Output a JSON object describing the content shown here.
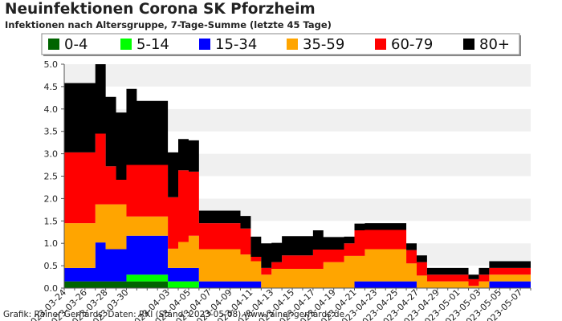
{
  "title": "Neuinfektionen Corona SK Pforzheim",
  "subtitle": "Infektionen nach Altersgruppe, 7-Tage-Summe (letzte 45 Tage)",
  "footer": "Grafik: Rainer Gerhards, Daten: RKI (Stand: 2023-05-08) www.rainer-gerhards.de",
  "chart_data": {
    "type": "area",
    "stacked": true,
    "title": "Neuinfektionen Corona SK Pforzheim",
    "subtitle": "Infektionen nach Altersgruppe, 7-Tage-Summe (letzte 45 Tage)",
    "xlabel": "",
    "ylabel": "",
    "ylim": [
      0,
      5.0
    ],
    "yticks": [
      "0.0",
      "0.5",
      "1.0",
      "1.5",
      "2.0",
      "2.5",
      "3.0",
      "3.5",
      "4.0",
      "4.5",
      "5.0"
    ],
    "grid": "alternating horizontal bands",
    "legend_position": "top",
    "x": [
      "2023-03-24",
      "2023-03-25",
      "2023-03-26",
      "2023-03-27",
      "2023-03-28",
      "2023-03-29",
      "2023-03-30",
      "2023-03-31",
      "2023-04-01",
      "2023-04-02",
      "2023-04-03",
      "2023-04-04",
      "2023-04-05",
      "2023-04-06",
      "2023-04-07",
      "2023-04-08",
      "2023-04-09",
      "2023-04-10",
      "2023-04-11",
      "2023-04-12",
      "2023-04-13",
      "2023-04-14",
      "2023-04-15",
      "2023-04-16",
      "2023-04-17",
      "2023-04-18",
      "2023-04-19",
      "2023-04-20",
      "2023-04-21",
      "2023-04-22",
      "2023-04-23",
      "2023-04-24",
      "2023-04-25",
      "2023-04-26",
      "2023-04-27",
      "2023-04-28",
      "2023-04-29",
      "2023-04-30",
      "2023-05-01",
      "2023-05-02",
      "2023-05-03",
      "2023-05-04",
      "2023-05-05",
      "2023-05-06",
      "2023-05-07",
      "2023-05-08"
    ],
    "xtick_labels": [
      "2023-03-24",
      "2023-03-26",
      "2023-03-28",
      "2023-03-30",
      "2023-04-03",
      "2023-04-05",
      "2023-04-07",
      "2023-04-09",
      "2023-04-11",
      "2023-04-13",
      "2023-04-15",
      "2023-04-17",
      "2023-04-19",
      "2023-04-21",
      "2023-04-23",
      "2023-04-25",
      "2023-04-27",
      "2023-04-29",
      "2023-05-01",
      "2023-05-03",
      "2023-05-05",
      "2023-05-07"
    ],
    "series": [
      {
        "name": "0-4",
        "color": "#006400",
        "values": [
          0.15,
          0.15,
          0.15,
          0.15,
          0.15,
          0.15,
          0.15,
          0.15,
          0.15,
          0.15,
          0,
          0,
          0,
          0,
          0,
          0,
          0,
          0,
          0,
          0,
          0,
          0,
          0,
          0,
          0,
          0,
          0,
          0,
          0,
          0,
          0,
          0,
          0,
          0,
          0,
          0,
          0,
          0,
          0,
          0,
          0,
          0,
          0,
          0,
          0,
          0
        ]
      },
      {
        "name": "5-14",
        "color": "#00ff00",
        "values": [
          0,
          0,
          0,
          0,
          0,
          0,
          0.15,
          0.15,
          0.15,
          0.15,
          0.15,
          0.15,
          0.15,
          0,
          0,
          0,
          0,
          0,
          0,
          0,
          0,
          0,
          0,
          0,
          0,
          0,
          0,
          0,
          0,
          0,
          0,
          0,
          0,
          0,
          0,
          0,
          0,
          0,
          0,
          0,
          0,
          0,
          0,
          0,
          0,
          0
        ]
      },
      {
        "name": "15-34",
        "color": "#0000ff",
        "values": [
          0.3,
          0.3,
          0.3,
          0.87,
          0.72,
          0.72,
          0.87,
          0.87,
          0.87,
          0.87,
          0.3,
          0.3,
          0.3,
          0.15,
          0.15,
          0.15,
          0.15,
          0.15,
          0.15,
          0,
          0,
          0,
          0,
          0,
          0,
          0,
          0,
          0,
          0.15,
          0.15,
          0.15,
          0.15,
          0.15,
          0.15,
          0,
          0,
          0,
          0,
          0,
          0,
          0,
          0.15,
          0.15,
          0.15,
          0.15,
          0.15
        ]
      },
      {
        "name": "35-59",
        "color": "#ffa500",
        "values": [
          1.0,
          1.0,
          1.0,
          0.85,
          1.0,
          1.0,
          0.43,
          0.43,
          0.43,
          0.43,
          0.43,
          0.58,
          0.72,
          0.72,
          0.72,
          0.72,
          0.72,
          0.6,
          0.45,
          0.3,
          0.43,
          0.43,
          0.43,
          0.43,
          0.43,
          0.58,
          0.58,
          0.72,
          0.57,
          0.72,
          0.72,
          0.72,
          0.72,
          0.4,
          0.28,
          0.15,
          0.15,
          0.15,
          0.15,
          0.05,
          0.15,
          0.15,
          0.15,
          0.15,
          0.15,
          0.15
        ]
      },
      {
        "name": "60-79",
        "color": "#ff0000",
        "values": [
          1.58,
          1.58,
          1.58,
          1.58,
          0.85,
          0.55,
          1.15,
          1.15,
          1.15,
          1.15,
          1.15,
          1.6,
          1.43,
          0.58,
          0.58,
          0.58,
          0.58,
          0.58,
          0.1,
          0.15,
          0.15,
          0.3,
          0.3,
          0.3,
          0.43,
          0.28,
          0.28,
          0.28,
          0.57,
          0.43,
          0.43,
          0.43,
          0.43,
          0.3,
          0.3,
          0.15,
          0.15,
          0.15,
          0.15,
          0.15,
          0.15,
          0.15,
          0.15,
          0.15,
          0.15,
          0.3
        ]
      },
      {
        "name": "80+",
        "color": "#000000",
        "values": [
          1.55,
          1.55,
          1.55,
          1.55,
          1.55,
          1.5,
          1.7,
          1.43,
          1.43,
          1.43,
          1.0,
          0.7,
          0.7,
          0.28,
          0.28,
          0.28,
          0.28,
          0.28,
          0.45,
          0.55,
          0.43,
          0.43,
          0.43,
          0.43,
          0.43,
          0.28,
          0.28,
          0.15,
          0.15,
          0.15,
          0.15,
          0.15,
          0.15,
          0.15,
          0.15,
          0.15,
          0.15,
          0.15,
          0.15,
          0.1,
          0.15,
          0.15,
          0.15,
          0.15,
          0.15,
          0.28
        ]
      }
    ]
  }
}
